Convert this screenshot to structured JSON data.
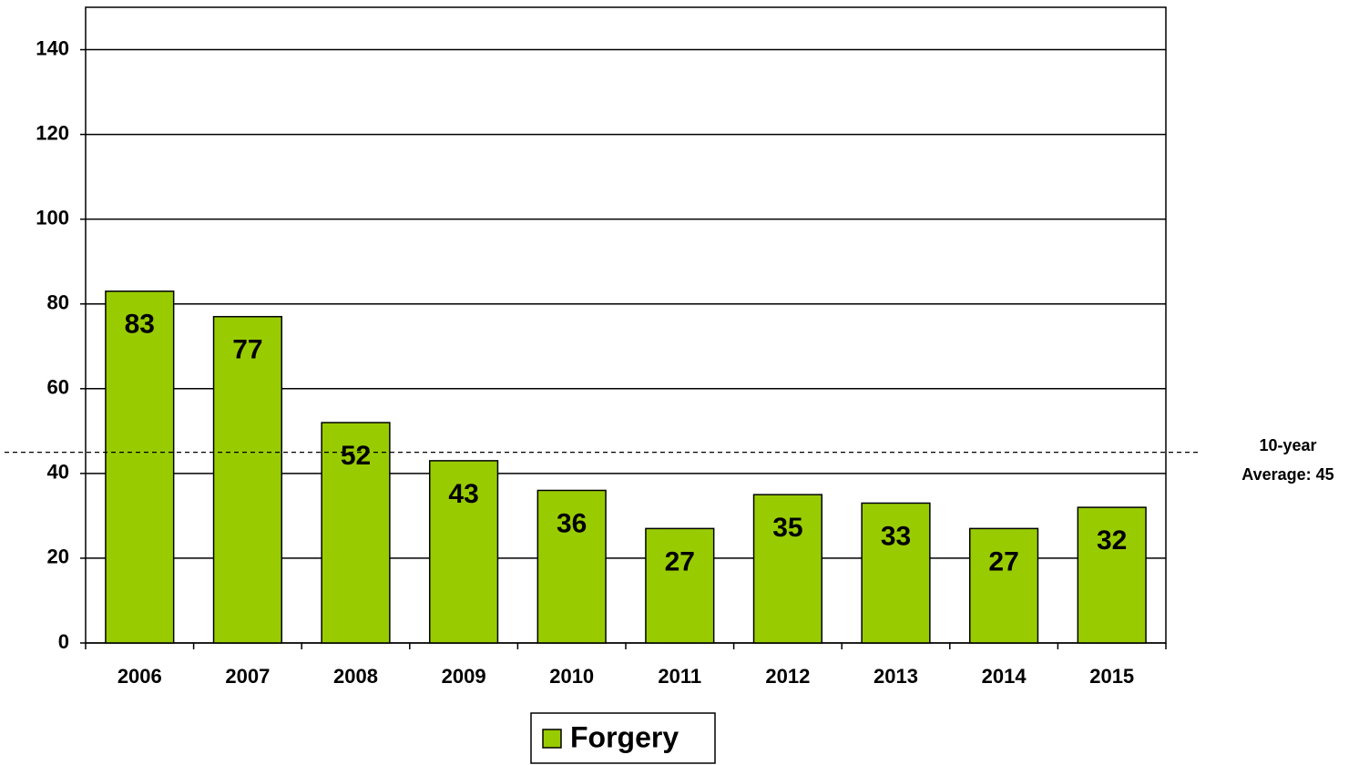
{
  "chart_data": {
    "type": "bar",
    "categories": [
      "2006",
      "2007",
      "2008",
      "2009",
      "2010",
      "2011",
      "2012",
      "2013",
      "2014",
      "2015"
    ],
    "series": [
      {
        "name": "Forgery",
        "color": "#99cc00",
        "values": [
          83,
          77,
          52,
          43,
          36,
          27,
          35,
          33,
          27,
          32
        ]
      }
    ],
    "ylim": [
      0,
      150
    ],
    "yticks": [
      0,
      20,
      40,
      60,
      80,
      100,
      120,
      140
    ],
    "grid": true,
    "reference_line": 45,
    "annotation": [
      "10-year",
      "Average: 45"
    ],
    "legend": "bottom"
  }
}
